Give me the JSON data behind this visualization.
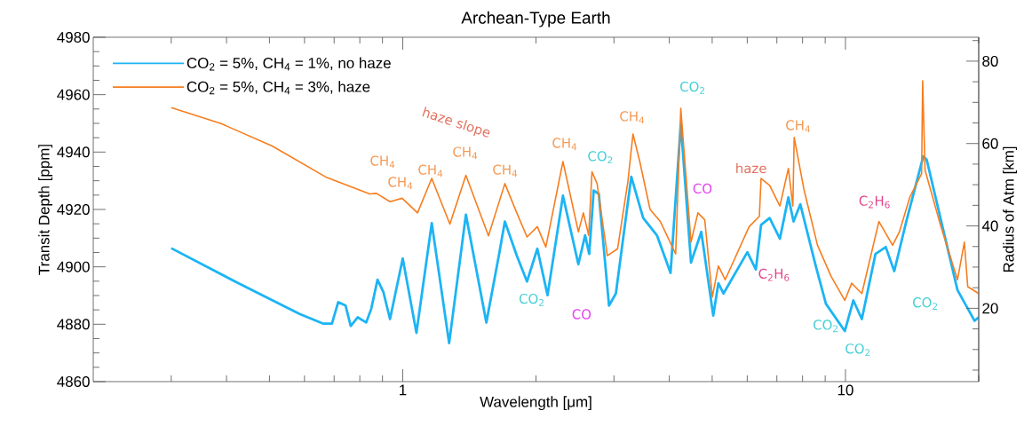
{
  "chart_data": {
    "type": "line",
    "title": "Archean-Type Earth",
    "xlabel": "Wavelength [μm]",
    "ylabel": "Transit Depth [ppm]",
    "y2label": "Radius of Atm [km]",
    "log": "x",
    "xlim": [
      0.2,
      20
    ],
    "ylim": [
      4860,
      4980
    ],
    "y2lim": [
      2.2,
      85.8
    ],
    "xticks": [
      {
        "value": 0.3,
        "label": null
      },
      {
        "value": 0.4,
        "label": null
      },
      {
        "value": 0.5,
        "label": null
      },
      {
        "value": 0.6,
        "label": null
      },
      {
        "value": 0.7,
        "label": null
      },
      {
        "value": 0.8,
        "label": null
      },
      {
        "value": 0.9,
        "label": null
      },
      1,
      {
        "value": 2,
        "label": null
      },
      {
        "value": 3,
        "label": null
      },
      {
        "value": 4,
        "label": null
      },
      {
        "value": 5,
        "label": null
      },
      {
        "value": 6,
        "label": null
      },
      {
        "value": 7,
        "label": null
      },
      {
        "value": 8,
        "label": null
      },
      {
        "value": 9,
        "label": null
      },
      10,
      {
        "value": 20,
        "label": null
      }
    ],
    "yticks": [
      4860,
      4880,
      4900,
      4920,
      4940,
      4960,
      4980,
      {
        "value": 4865,
        "label": null
      },
      {
        "value": 4870,
        "label": null
      },
      {
        "value": 4875,
        "label": null
      },
      {
        "value": 4885,
        "label": null
      },
      {
        "value": 4890,
        "label": null
      },
      {
        "value": 4895,
        "label": null
      },
      {
        "value": 4905,
        "label": null
      },
      {
        "value": 4910,
        "label": null
      },
      {
        "value": 4915,
        "label": null
      },
      {
        "value": 4925,
        "label": null
      },
      {
        "value": 4930,
        "label": null
      },
      {
        "value": 4935,
        "label": null
      },
      {
        "value": 4945,
        "label": null
      },
      {
        "value": 4950,
        "label": null
      },
      {
        "value": 4955,
        "label": null
      },
      {
        "value": 4965,
        "label": null
      },
      {
        "value": 4970,
        "label": null
      },
      {
        "value": 4975,
        "label": null
      }
    ],
    "y2ticks": [
      20,
      40,
      60,
      80,
      {
        "value": 5,
        "label": null
      },
      {
        "value": 10,
        "label": null
      },
      {
        "value": 15,
        "label": null
      },
      {
        "value": 25,
        "label": null
      },
      {
        "value": 30,
        "label": null
      },
      {
        "value": 35,
        "label": null
      },
      {
        "value": 45,
        "label": null
      },
      {
        "value": 50,
        "label": null
      },
      {
        "value": 55,
        "label": null
      },
      {
        "value": 65,
        "label": null
      },
      {
        "value": 70,
        "label": null
      },
      {
        "value": 75,
        "label": null
      },
      {
        "value": 85,
        "label": null
      }
    ],
    "legend": "top left",
    "marker": "none",
    "line_style": "solid",
    "series": [
      {
        "name": "CO$_{2}$ = 5%, CH$_{4}$ = 1%, no haze",
        "color": "#1cb4f4",
        "x": [
          0.3,
          0.425,
          0.585,
          0.662,
          0.692,
          0.715,
          0.743,
          0.763,
          0.791,
          0.827,
          0.849,
          0.877,
          0.904,
          0.936,
          1.0,
          1.074,
          1.163,
          1.273,
          1.389,
          1.545,
          1.654,
          1.701,
          1.81,
          1.909,
          2.014,
          2.124,
          2.301,
          2.493,
          2.582,
          2.638,
          2.7,
          2.773,
          2.924,
          3.03,
          3.283,
          3.493,
          3.751,
          4.027,
          4.247,
          4.479,
          4.725,
          5.028,
          5.164,
          5.303,
          6.004,
          6.276,
          6.448,
          6.741,
          7.111,
          7.433,
          7.634,
          7.909,
          8.568,
          9.036,
          9.965,
          10.42,
          10.89,
          11.69,
          12.33,
          12.89,
          13.72,
          14.99,
          15.26,
          16.39,
          17.91,
          19.57,
          20
        ],
        "values": [
          4906.5,
          4894.3,
          4883.6,
          4880.2,
          4880.2,
          4887.7,
          4886.5,
          4879.4,
          4882.4,
          4880.6,
          4885.4,
          4895.5,
          4891.3,
          4881.8,
          4902.9,
          4877.0,
          4915.2,
          4873.4,
          4918.2,
          4880.6,
          4905.1,
          4915.8,
          4903.9,
          4894.9,
          4906.3,
          4890.1,
          4924.8,
          4900.9,
          4911.0,
          4904.5,
          4926.6,
          4925.4,
          4886.5,
          4890.7,
          4931.4,
          4917.0,
          4911.0,
          4897.9,
          4949.9,
          4901.5,
          4912.2,
          4883.0,
          4894.3,
          4890.7,
          4905.1,
          4899.1,
          4914.6,
          4917.0,
          4909.8,
          4924.2,
          4915.8,
          4921.8,
          4900.3,
          4887.1,
          4877.6,
          4888.3,
          4881.8,
          4904.5,
          4906.9,
          4898.5,
          4915.8,
          4938.5,
          4937.3,
          4917.0,
          4891.9,
          4881.2,
          4882.4
        ]
      },
      {
        "name": "CO$_{2}$ = 5%, CH$_{4}$ = 3%, haze",
        "color": "#f77d1e",
        "x": [
          0.3,
          0.389,
          0.507,
          0.674,
          0.842,
          0.872,
          0.936,
          0.997,
          1.08,
          1.163,
          1.278,
          1.389,
          1.562,
          1.701,
          1.81,
          1.909,
          2.014,
          2.105,
          2.301,
          2.493,
          2.559,
          2.63,
          2.676,
          2.748,
          2.899,
          3.057,
          3.225,
          3.312,
          3.431,
          3.62,
          3.818,
          4.135,
          4.247,
          4.479,
          4.642,
          4.81,
          5.003,
          5.164,
          5.35,
          6.06,
          6.391,
          6.448,
          6.741,
          7.111,
          7.433,
          7.607,
          7.661,
          8.052,
          8.647,
          9.281,
          9.965,
          10.33,
          10.89,
          11.9,
          12.78,
          13.24,
          13.97,
          14.86,
          14.94,
          15.13,
          16.39,
          17.91,
          18.56,
          18.89,
          20
        ],
        "values": [
          4955.5,
          4949.9,
          4942.1,
          4931.1,
          4925.4,
          4925.6,
          4922.7,
          4923.9,
          4918.8,
          4930.8,
          4914.9,
          4931.9,
          4910.8,
          4929.0,
          4918.8,
          4910.4,
          4914.0,
          4906.9,
          4936.7,
          4912.2,
          4918.8,
          4911.0,
          4933.1,
          4929.0,
          4903.9,
          4906.3,
          4929.6,
          4946.3,
          4936.7,
          4920.0,
          4915.8,
          4904.5,
          4955.2,
          4908.6,
          4918.8,
          4916.4,
          4889.5,
          4900.3,
          4895.5,
          4914.0,
          4917.6,
          4930.8,
          4928.4,
          4921.2,
          4934.3,
          4921.2,
          4945.1,
          4927.2,
          4907.5,
          4896.7,
          4888.3,
          4894.3,
          4890.7,
          4915.8,
          4907.5,
          4912.2,
          4924.2,
          4932.5,
          4964.8,
          4933.7,
          4914.6,
          4895.5,
          4908.6,
          4893.1,
          4890.7
        ]
      }
    ],
    "annotations": [
      "haze slope",
      "CH$_{4}$",
      "CH$_{4}$",
      "CH$_{4}$",
      "CH$_{4}$",
      "CH$_{4}$",
      "CH$_{4}$",
      "CH$_{4}$",
      "CH$_{4}$",
      "CO$_{2}$",
      "CO$_{2}$",
      "CO$_{2}$",
      "CO$_{2}$",
      "CO$_{2}$",
      "CO$_{2}$",
      "CO",
      "CO",
      "C$_{2}$H$_{6}$",
      "C$_{2}$H$_{6}$",
      "haze"
    ]
  }
}
